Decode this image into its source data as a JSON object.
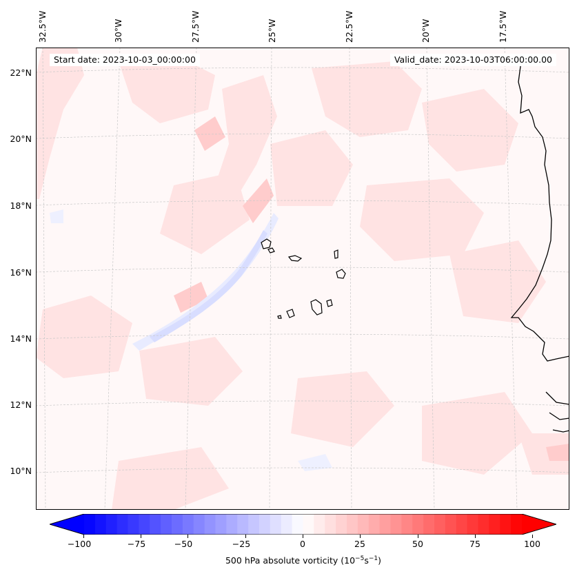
{
  "header": {
    "start_date": "Start date: 2023-10-03_00:00:00",
    "valid_date": "Valid_date: 2023-10-03T06:00:00.00"
  },
  "map": {
    "lon_labels": [
      "32.5°W",
      "30°W",
      "27.5°W",
      "25°W",
      "22.5°W",
      "20°W",
      "17.5°W"
    ],
    "lat_labels": [
      "22°N",
      "20°N",
      "18°N",
      "16°N",
      "14°N",
      "12°N",
      "10°N"
    ],
    "background_color": "#fff8f8",
    "positive_color": "#ff0000",
    "negative_color": "#0000ff"
  },
  "colorbar": {
    "ticks": [
      "−100",
      "−75",
      "−50",
      "−25",
      "0",
      "25",
      "50",
      "75",
      "100"
    ],
    "label_text": "500 hPa absolute vorticity (10",
    "label_exp1": "−5",
    "label_mid": "s",
    "label_exp2": "−1",
    "label_end": ")",
    "min": -100,
    "max": 100,
    "step": 5
  }
}
